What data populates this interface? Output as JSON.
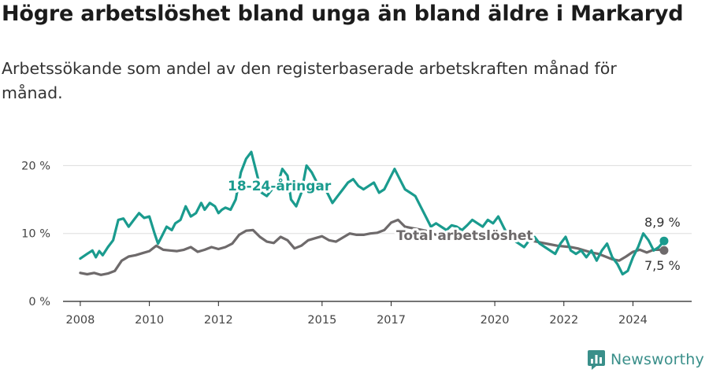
{
  "title": "Högre arbetslöshet bland unga än bland äldre i Markaryd",
  "subtitle": "Arbetssökande som andel av den registerbaserade arbetskraften månad för månad.",
  "brand": {
    "name": "Newsworthy",
    "logo_icon": "newsworthy-logo-icon",
    "color": "#3a8f8a"
  },
  "chart_data": {
    "type": "line",
    "title": "Högre arbetslöshet bland unga än bland äldre i Markaryd",
    "subtitle": "Arbetssökande som andel av den registerbaserade arbetskraften månad för månad.",
    "xlabel": "",
    "ylabel": "",
    "ylim": [
      0,
      23
    ],
    "y_ticks": [
      {
        "value": 0,
        "label": "0 %"
      },
      {
        "value": 10,
        "label": "10 %"
      },
      {
        "value": 20,
        "label": "20 %"
      }
    ],
    "x_ticks": [
      {
        "value": 2008,
        "label": "2008"
      },
      {
        "value": 2010,
        "label": "2010"
      },
      {
        "value": 2012,
        "label": "2012"
      },
      {
        "value": 2015,
        "label": "2015"
      },
      {
        "value": 2017,
        "label": "2017"
      },
      {
        "value": 2020,
        "label": "2020"
      },
      {
        "value": 2022,
        "label": "2022"
      },
      {
        "value": 2024,
        "label": "2024"
      }
    ],
    "grid": true,
    "series": [
      {
        "name": "18-24-åringar",
        "color": "#1a9b8e",
        "x": [
          2008,
          2008.2,
          2008.35,
          2008.45,
          2008.55,
          2008.65,
          2008.8,
          2008.95,
          2009.1,
          2009.25,
          2009.4,
          2009.55,
          2009.7,
          2009.85,
          2010.0,
          2010.15,
          2010.25,
          2010.35,
          2010.5,
          2010.65,
          2010.75,
          2010.9,
          2011.05,
          2011.2,
          2011.35,
          2011.5,
          2011.6,
          2011.75,
          2011.9,
          2012.0,
          2012.1,
          2012.2,
          2012.35,
          2012.5,
          2012.65,
          2012.8,
          2012.95,
          2013.1,
          2013.25,
          2013.4,
          2013.55,
          2013.7,
          2013.85,
          2014.0,
          2014.1,
          2014.25,
          2014.4,
          2014.55,
          2014.7,
          2014.85,
          2015.0,
          2015.15,
          2015.3,
          2015.45,
          2015.6,
          2015.75,
          2015.9,
          2016.05,
          2016.2,
          2016.35,
          2016.5,
          2016.65,
          2016.8,
          2016.95,
          2017.1,
          2017.25,
          2017.4,
          2017.55,
          2017.7,
          2017.85,
          2018.0,
          2018.15,
          2018.3,
          2018.45,
          2018.6,
          2018.75,
          2018.9,
          2019.05,
          2019.2,
          2019.35,
          2019.5,
          2019.65,
          2019.8,
          2019.95,
          2020.1,
          2020.25,
          2020.4,
          2020.55,
          2020.7,
          2020.85,
          2021.0,
          2021.15,
          2021.3,
          2021.45,
          2021.6,
          2021.75,
          2021.9,
          2022.05,
          2022.2,
          2022.35,
          2022.5,
          2022.65,
          2022.8,
          2022.95,
          2023.1,
          2023.25,
          2023.4,
          2023.55,
          2023.7,
          2023.85,
          2024.0,
          2024.15,
          2024.3,
          2024.45,
          2024.6,
          2024.75,
          2024.9
        ],
        "values": [
          6.3,
          7.0,
          7.5,
          6.5,
          7.4,
          6.8,
          8.0,
          9.0,
          12.0,
          12.2,
          11.0,
          12.0,
          13.0,
          12.3,
          12.5,
          10.0,
          8.5,
          9.5,
          11.0,
          10.5,
          11.5,
          12.0,
          14.0,
          12.5,
          13.0,
          14.5,
          13.5,
          14.5,
          14.0,
          13.0,
          13.5,
          13.8,
          13.5,
          15.0,
          19.0,
          21.0,
          22.0,
          19.0,
          16.0,
          15.5,
          16.5,
          17.0,
          19.5,
          18.5,
          15.0,
          14.0,
          16.0,
          20.0,
          19.0,
          17.5,
          17.0,
          16.0,
          14.5,
          15.5,
          16.5,
          17.5,
          18.0,
          17.0,
          16.5,
          17.0,
          17.5,
          16.0,
          16.5,
          18.0,
          19.5,
          18.0,
          16.5,
          16.0,
          15.5,
          14.0,
          12.5,
          11.0,
          11.5,
          11.0,
          10.5,
          11.2,
          11.0,
          10.5,
          11.2,
          12.0,
          11.5,
          11.0,
          12.0,
          11.5,
          12.5,
          11.0,
          9.5,
          9.0,
          8.5,
          8.0,
          9.0,
          9.5,
          8.5,
          8.0,
          7.5,
          7.0,
          8.5,
          9.5,
          7.5,
          7.0,
          7.5,
          6.5,
          7.5,
          6.0,
          7.5,
          8.5,
          6.5,
          5.5,
          4.0,
          4.5,
          6.5,
          8.0,
          10.0,
          9.0,
          7.5,
          8.0,
          8.9
        ]
      },
      {
        "name": "Total arbetslöshet",
        "color": "#6e6a6b",
        "x": [
          2008,
          2008.2,
          2008.4,
          2008.6,
          2008.8,
          2009.0,
          2009.2,
          2009.4,
          2009.6,
          2009.8,
          2010.0,
          2010.2,
          2010.4,
          2010.6,
          2010.8,
          2011.0,
          2011.2,
          2011.4,
          2011.6,
          2011.8,
          2012.0,
          2012.2,
          2012.4,
          2012.6,
          2012.8,
          2013.0,
          2013.2,
          2013.4,
          2013.6,
          2013.8,
          2014.0,
          2014.2,
          2014.4,
          2014.6,
          2014.8,
          2015.0,
          2015.2,
          2015.4,
          2015.6,
          2015.8,
          2016.0,
          2016.2,
          2016.4,
          2016.6,
          2016.8,
          2017.0,
          2017.2,
          2017.4,
          2017.6,
          2017.8,
          2018.0,
          2018.2,
          2018.4,
          2018.6,
          2018.8,
          2019.0,
          2019.2,
          2019.4,
          2019.6,
          2019.8,
          2020.0,
          2020.2,
          2020.4,
          2020.6,
          2020.8,
          2021.0,
          2021.2,
          2021.4,
          2021.6,
          2021.8,
          2022.0,
          2022.2,
          2022.4,
          2022.6,
          2022.8,
          2023.0,
          2023.2,
          2023.4,
          2023.6,
          2023.8,
          2024.0,
          2024.2,
          2024.4,
          2024.6,
          2024.8,
          2024.9
        ],
        "values": [
          4.2,
          4.0,
          4.2,
          3.9,
          4.1,
          4.5,
          6.0,
          6.6,
          6.8,
          7.1,
          7.4,
          8.2,
          7.6,
          7.5,
          7.4,
          7.6,
          8.0,
          7.3,
          7.6,
          8.0,
          7.7,
          8.0,
          8.5,
          9.8,
          10.4,
          10.5,
          9.5,
          8.8,
          8.6,
          9.5,
          9.0,
          7.8,
          8.2,
          9.0,
          9.3,
          9.6,
          9.0,
          8.8,
          9.4,
          10.0,
          9.8,
          9.8,
          10.0,
          10.1,
          10.5,
          11.6,
          12.0,
          11.0,
          10.8,
          10.6,
          10.4,
          10.0,
          9.6,
          9.8,
          9.6,
          9.6,
          9.8,
          9.6,
          9.8,
          9.8,
          10.2,
          10.0,
          9.8,
          9.6,
          9.2,
          9.0,
          8.8,
          8.6,
          8.4,
          8.2,
          8.1,
          8.0,
          7.8,
          7.5,
          7.2,
          7.0,
          6.6,
          6.2,
          6.0,
          6.6,
          7.3,
          7.6,
          7.2,
          7.6,
          7.6,
          7.5
        ]
      }
    ],
    "series_labels": [
      "18-24-åringar",
      "Total arbetslöshet"
    ],
    "end_labels": [
      "8,9 %",
      "7,5 %"
    ]
  }
}
